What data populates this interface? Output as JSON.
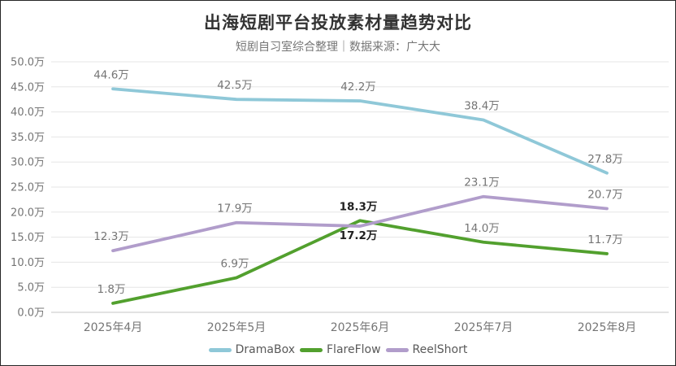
{
  "chart_data": {
    "type": "line",
    "title": "出海短剧平台投放素材量趋势对比",
    "subtitle": "短剧自习室综合整理｜数据来源：广大大",
    "categories": [
      "2025年4月",
      "2025年5月",
      "2025年6月",
      "2025年7月",
      "2025年8月"
    ],
    "y_axis": {
      "min": 0,
      "max": 50,
      "step": 5,
      "unit": "万",
      "tick_labels": [
        "0.0万",
        "5.0万",
        "10.0万",
        "15.0万",
        "20.0万",
        "25.0万",
        "30.0万",
        "35.0万",
        "40.0万",
        "45.0万",
        "50.0万"
      ]
    },
    "series": [
      {
        "name": "DramaBox",
        "color": "#8FC8D8",
        "values": [
          44.6,
          42.5,
          42.2,
          38.4,
          27.8
        ],
        "point_labels": [
          "44.6万",
          "42.5万",
          "42.2万",
          "38.4万",
          "27.8万"
        ],
        "emphasized_points": [],
        "labels_below_points": []
      },
      {
        "name": "FlareFlow",
        "color": "#52A02E",
        "values": [
          1.8,
          6.9,
          18.3,
          14.0,
          11.7
        ],
        "point_labels": [
          "1.8万",
          "6.9万",
          "18.3万",
          "14.0万",
          "11.7万"
        ],
        "emphasized_points": [
          2
        ],
        "labels_below_points": []
      },
      {
        "name": "ReelShort",
        "color": "#B19DCB",
        "values": [
          12.3,
          17.9,
          17.2,
          23.1,
          20.7
        ],
        "point_labels": [
          "12.3万",
          "17.9万",
          "17.2万",
          "23.1万",
          "20.7万"
        ],
        "emphasized_points": [
          2
        ],
        "labels_below_points": [
          2
        ]
      }
    ],
    "legend": {
      "position": "bottom",
      "entries": [
        "DramaBox",
        "FlareFlow",
        "ReelShort"
      ]
    },
    "grid": true,
    "styles": {
      "grid_color": "#E5E5E5",
      "axis_line_color": "#C4C4C4",
      "label_color": "#757575",
      "emphasis_label_color": "#1F1F1F",
      "title_color": "#333333"
    }
  }
}
